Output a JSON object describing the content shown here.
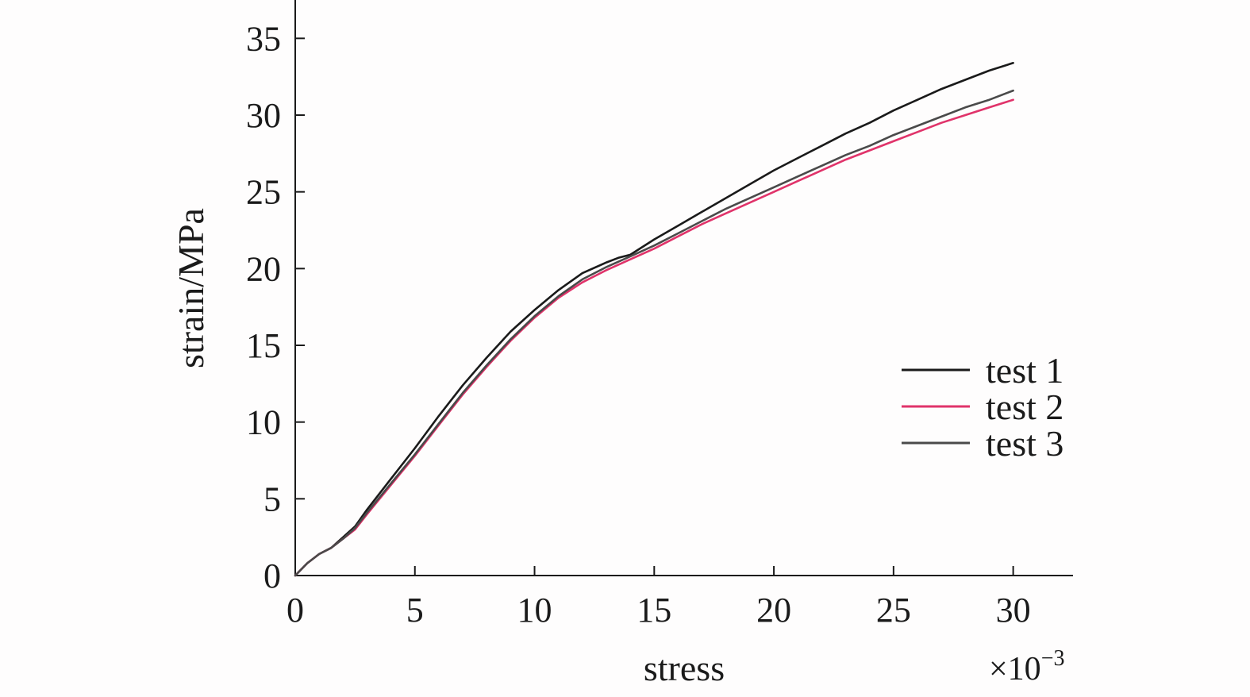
{
  "chart_data": {
    "type": "line",
    "title": "",
    "xlabel": "stress",
    "ylabel": "strain/MPa",
    "x_multiplier": {
      "base": "×10",
      "exponent": "−3"
    },
    "xlim": [
      0,
      32.5
    ],
    "ylim": [
      0,
      37.5
    ],
    "x_ticks": [
      0,
      5,
      10,
      15,
      20,
      25,
      30
    ],
    "x_tick_labels": [
      "0",
      "5",
      "10",
      "15",
      "20",
      "25",
      "30"
    ],
    "y_ticks": [
      0,
      5,
      10,
      15,
      20,
      25,
      30,
      35
    ],
    "y_tick_labels": [
      "0",
      "5",
      "10",
      "15",
      "20",
      "25",
      "30",
      "35"
    ],
    "grid": false,
    "legend_position": "right",
    "series": [
      {
        "name": "test 1",
        "color": "#1a1a1a",
        "x": [
          0,
          0.5,
          1,
          1.5,
          2,
          2.5,
          3,
          4,
          5,
          6,
          7,
          8,
          9,
          10,
          11,
          12,
          13,
          13.5,
          14,
          15,
          16,
          17,
          18,
          19,
          20,
          21,
          22,
          23,
          24,
          25,
          26,
          27,
          28,
          29,
          30
        ],
        "y": [
          0,
          0.8,
          1.4,
          1.8,
          2.5,
          3.2,
          4.3,
          6.3,
          8.3,
          10.4,
          12.4,
          14.2,
          15.9,
          17.3,
          18.6,
          19.7,
          20.4,
          20.7,
          20.9,
          21.9,
          22.8,
          23.7,
          24.6,
          25.5,
          26.4,
          27.2,
          28.0,
          28.8,
          29.5,
          30.3,
          31.0,
          31.7,
          32.3,
          32.9,
          33.4
        ]
      },
      {
        "name": "test 2",
        "color": "#e0336a",
        "x": [
          0,
          0.5,
          1,
          1.5,
          2,
          2.5,
          3,
          4,
          5,
          6,
          7,
          8,
          9,
          10,
          11,
          12,
          13,
          14,
          15,
          16,
          17,
          18,
          19,
          20,
          21,
          22,
          23,
          24,
          25,
          26,
          27,
          28,
          29,
          30
        ],
        "y": [
          0,
          0.8,
          1.4,
          1.8,
          2.4,
          3.0,
          4.0,
          5.9,
          7.8,
          9.8,
          11.8,
          13.6,
          15.3,
          16.8,
          18.1,
          19.1,
          19.9,
          20.6,
          21.3,
          22.1,
          22.9,
          23.6,
          24.3,
          25.0,
          25.7,
          26.4,
          27.1,
          27.7,
          28.3,
          28.9,
          29.5,
          30.0,
          30.5,
          31.0
        ]
      },
      {
        "name": "test 3",
        "color": "#4a4a4a",
        "x": [
          0,
          0.5,
          1,
          1.5,
          2,
          2.5,
          3,
          4,
          5,
          6,
          7,
          8,
          9,
          10,
          11,
          12,
          13,
          14,
          15,
          16,
          17,
          18,
          19,
          20,
          21,
          22,
          23,
          24,
          25,
          26,
          27,
          28,
          29,
          30
        ],
        "y": [
          0,
          0.8,
          1.4,
          1.8,
          2.4,
          3.1,
          4.1,
          6.0,
          7.9,
          9.9,
          11.9,
          13.7,
          15.4,
          16.9,
          18.2,
          19.3,
          20.1,
          20.8,
          21.5,
          22.3,
          23.1,
          23.9,
          24.6,
          25.3,
          26.0,
          26.7,
          27.4,
          28.0,
          28.7,
          29.3,
          29.9,
          30.5,
          31.0,
          31.6
        ]
      }
    ]
  }
}
